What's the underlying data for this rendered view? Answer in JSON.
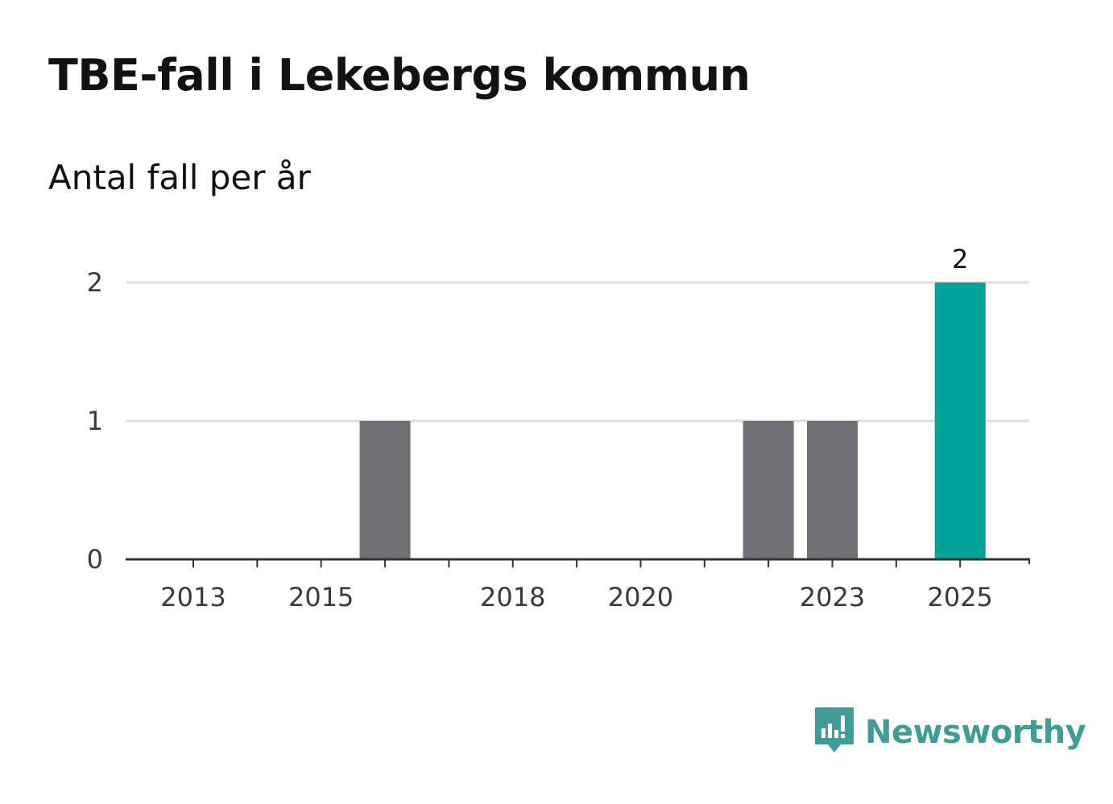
{
  "title": "TBE-fall i Lekebergs kommun",
  "subtitle": "Antal fall per år",
  "brand": {
    "name": "Newsworthy",
    "color": "#3f9c96",
    "icon": "newsworthy-logo-icon"
  },
  "colors": {
    "bar_default": "#717075",
    "bar_highlight": "#00a398",
    "grid": "#dddddd",
    "axis": "#333333"
  },
  "chart_data": {
    "type": "bar",
    "title": "TBE-fall i Lekebergs kommun",
    "ylabel": "Antal fall per år",
    "xlabel": "",
    "categories": [
      "2013",
      "2014",
      "2015",
      "2016",
      "2017",
      "2018",
      "2019",
      "2020",
      "2021",
      "2022",
      "2023",
      "2024",
      "2025"
    ],
    "values": [
      0,
      0,
      0,
      1,
      0,
      0,
      0,
      0,
      0,
      1,
      1,
      0,
      2
    ],
    "highlight_index": 12,
    "x_tick_labels": [
      "2013",
      "2015",
      "2018",
      "2020",
      "2023",
      "2025"
    ],
    "y_ticks": [
      0,
      1,
      2
    ],
    "ylim": [
      0,
      2
    ],
    "data_labels": [
      {
        "category": "2025",
        "value": 2,
        "text": "2"
      }
    ],
    "grid": true
  }
}
